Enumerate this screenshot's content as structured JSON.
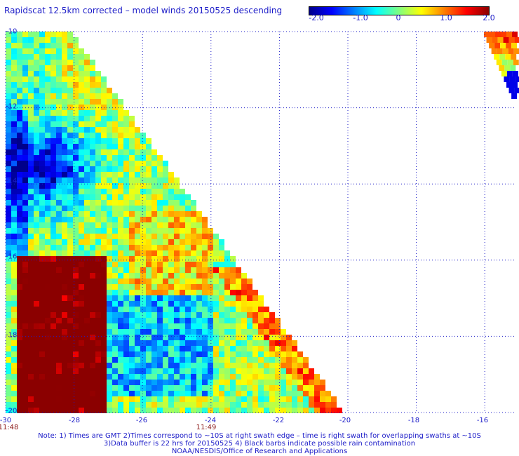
{
  "title": "Rapidscat 12.5km corrected – model winds 20150525 descending",
  "colorbar": {
    "ticks": [
      "-2.0",
      "-1.0",
      "0",
      "1.0",
      "2.0"
    ],
    "stops": [
      "#00008b",
      "#0000ff",
      "#0080ff",
      "#00ffff",
      "#80ff80",
      "#ffff00",
      "#ff8000",
      "#ff0000",
      "#8b0000"
    ]
  },
  "axes": {
    "x_ticks": [
      "-30",
      "-28",
      "-26",
      "-24",
      "-22",
      "-20",
      "-18",
      "-16"
    ],
    "y_ticks": [
      "-10",
      "-12",
      "-14",
      "-16",
      "-18",
      "-20"
    ],
    "xlim": [
      -30,
      -15
    ],
    "ylim": [
      -20,
      -10
    ],
    "grid": true
  },
  "times": [
    {
      "label": "11:48",
      "lon": -30
    },
    {
      "label": "11:49",
      "lon": -24
    }
  ],
  "notes": [
    "Note: 1) Times are GMT 2)Times correspond to ~10S at right swath edge – time is right swath for overlapping swaths at ~10S",
    "3)Data buffer is 22 hrs for 20150525 4) Black barbs indicate possible rain contamination",
    "NOAA/NESDIS/Office of Research and Applications"
  ]
}
